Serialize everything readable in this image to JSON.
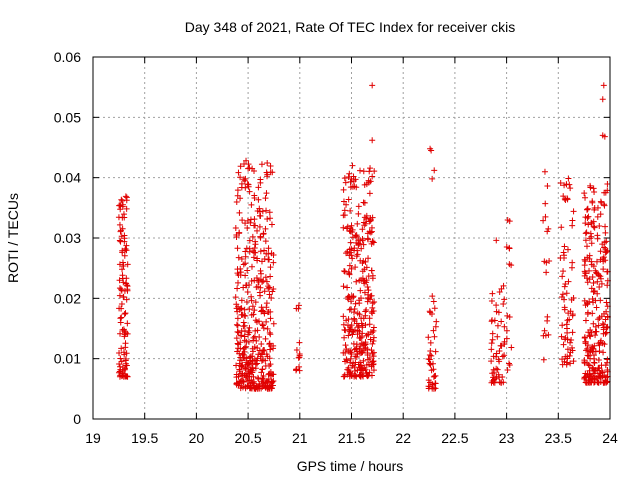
{
  "chart_data": {
    "type": "scatter",
    "title": "Day 348 of 2021, Rate Of TEC Index for receiver ckis",
    "xlabel": "GPS time / hours",
    "ylabel": "ROTI / TECUs",
    "xlim": [
      19,
      24
    ],
    "ylim": [
      0,
      0.06
    ],
    "xticks": [
      "19",
      "19.5",
      "20",
      "20.5",
      "21",
      "21.5",
      "22",
      "22.5",
      "23",
      "23.5",
      "24"
    ],
    "yticks": [
      "0",
      "0.01",
      "0.02",
      "0.03",
      "0.04",
      "0.05",
      "0.06"
    ],
    "grid": true,
    "marker_color": "#e00000",
    "clusters": [
      {
        "x": [
          19.25,
          19.34
        ],
        "y": [
          0.007,
          0.037
        ],
        "n": 110
      },
      {
        "x": [
          20.38,
          20.75
        ],
        "y": [
          0.005,
          0.043
        ],
        "n": 420
      },
      {
        "x": [
          20.95,
          21.0
        ],
        "y": [
          0.008,
          0.019
        ],
        "n": 14
      },
      {
        "x": [
          21.42,
          21.72
        ],
        "y": [
          0.007,
          0.042
        ],
        "n": 330
      },
      {
        "x": [
          22.24,
          22.32
        ],
        "y": [
          0.005,
          0.021
        ],
        "n": 40
      },
      {
        "x": [
          22.85,
          22.98
        ],
        "y": [
          0.006,
          0.023
        ],
        "n": 55
      },
      {
        "x": [
          23.0,
          23.06
        ],
        "y": [
          0.008,
          0.033
        ],
        "n": 14
      },
      {
        "x": [
          23.35,
          23.42
        ],
        "y": [
          0.009,
          0.042
        ],
        "n": 18
      },
      {
        "x": [
          23.52,
          23.65
        ],
        "y": [
          0.009,
          0.04
        ],
        "n": 70
      },
      {
        "x": [
          23.75,
          23.98
        ],
        "y": [
          0.006,
          0.039
        ],
        "n": 260
      }
    ],
    "outliers": [
      {
        "x": 21.7,
        "y": 0.0553
      },
      {
        "x": 21.7,
        "y": 0.0462
      },
      {
        "x": 21.7,
        "y": 0.0402
      },
      {
        "x": 22.26,
        "y": 0.0448
      },
      {
        "x": 22.27,
        "y": 0.0445
      },
      {
        "x": 22.3,
        "y": 0.0412
      },
      {
        "x": 22.28,
        "y": 0.0398
      },
      {
        "x": 23.94,
        "y": 0.0553
      },
      {
        "x": 23.93,
        "y": 0.053
      },
      {
        "x": 23.93,
        "y": 0.047
      },
      {
        "x": 23.95,
        "y": 0.0468
      },
      {
        "x": 20.48,
        "y": 0.0428
      },
      {
        "x": 20.5,
        "y": 0.0415
      },
      {
        "x": 22.9,
        "y": 0.0296
      },
      {
        "x": 23.03,
        "y": 0.0328
      }
    ]
  }
}
